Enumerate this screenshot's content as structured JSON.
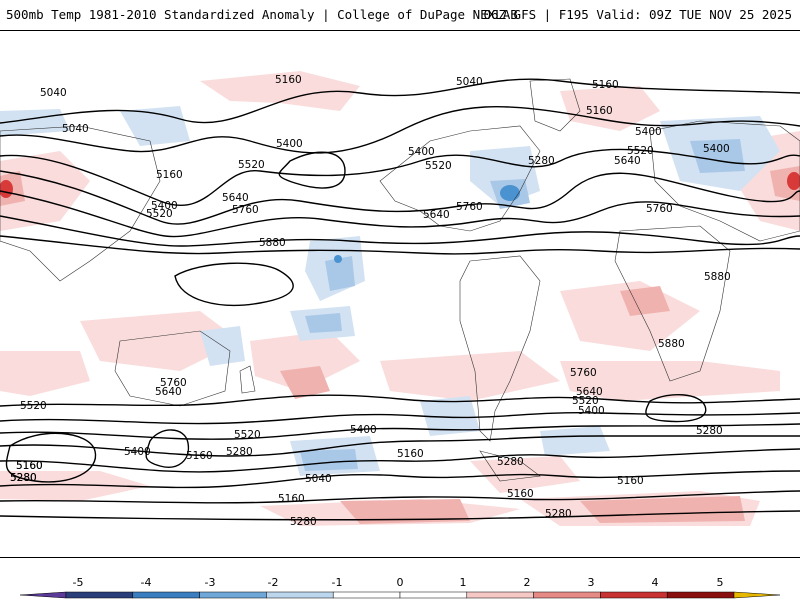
{
  "header": {
    "title_left": "500mb Temp 1981-2010 Standardized Anomaly | College of DuPage NEXLAB",
    "title_right": "06Z GFS | F195 Valid: 09Z TUE NOV 25 2025"
  },
  "contour_labels": [
    "5040",
    "5040",
    "5160",
    "5040",
    "5160",
    "5400",
    "5160",
    "5400",
    "5520",
    "5280",
    "5160",
    "5400",
    "5520",
    "5640",
    "5400",
    "5520",
    "5640",
    "5760",
    "5880",
    "5640",
    "5760",
    "5400",
    "5520",
    "5760",
    "5880",
    "5880",
    "5760",
    "5640",
    "5520",
    "5400",
    "5760",
    "5640",
    "5520",
    "5400",
    "5160",
    "5280",
    "5400",
    "5280",
    "5040",
    "5160",
    "5160",
    "5280",
    "5160",
    "5280",
    "5280",
    "5160",
    "5280",
    "5160",
    "5520",
    "5160",
    "5280"
  ],
  "colorbar": {
    "ticks": [
      "-5",
      "-4",
      "-3",
      "-2",
      "-1",
      "0",
      "1",
      "2",
      "3",
      "4",
      "5"
    ],
    "colors": [
      "#5b3a9a",
      "#2a3f7a",
      "#3a7ec0",
      "#6fa8d8",
      "#bcd6ee",
      "#ffffff",
      "#ffffff",
      "#f5c8c6",
      "#e68a86",
      "#c83232",
      "#8a1010",
      "#e8b800"
    ]
  },
  "colors": {
    "cool_light": "#d2e2f2",
    "cool_mid": "#a9c8e8",
    "cool_strong": "#4a92d0",
    "warm_light": "#f9dcdb",
    "warm_mid": "#f0b2af",
    "warm_strong": "#d83a3a"
  }
}
